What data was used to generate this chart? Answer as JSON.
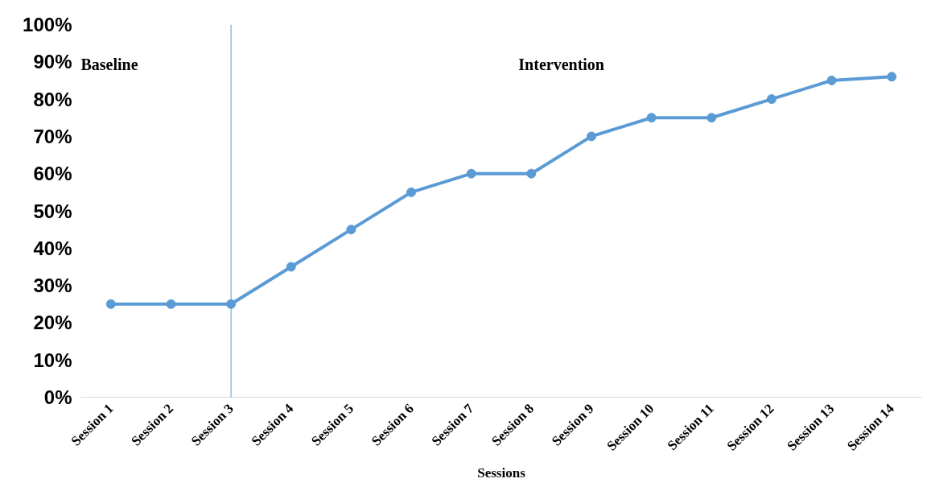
{
  "chart_data": {
    "type": "line",
    "xlabel": "Sessions",
    "categories": [
      "Session 1",
      "Session 2",
      "Session 3",
      "Session 4",
      "Session 5",
      "Session 6",
      "Session 7",
      "Session 8",
      "Session 9",
      "Session 10",
      "Session 11",
      "Session 12",
      "Session 13",
      "Session 14"
    ],
    "series": [
      {
        "color": "#5b9bd5",
        "values": [
          25,
          25,
          25,
          35,
          45,
          55,
          60,
          60,
          70,
          75,
          75,
          80,
          85,
          86
        ]
      }
    ],
    "ylim": [
      0,
      100
    ],
    "yticks": [
      {
        "value": 0,
        "label": "0%"
      },
      {
        "value": 10,
        "label": "10%"
      },
      {
        "value": 20,
        "label": "20%"
      },
      {
        "value": 30,
        "label": "30%"
      },
      {
        "value": 40,
        "label": "40%"
      },
      {
        "value": 50,
        "label": "50%"
      },
      {
        "value": 60,
        "label": "60%"
      },
      {
        "value": 70,
        "label": "70%"
      },
      {
        "value": 80,
        "label": "80%"
      },
      {
        "value": 90,
        "label": "90%"
      },
      {
        "value": 100,
        "label": "100%"
      }
    ],
    "ref_lines": [
      {
        "axis": "x",
        "value": "Session 3",
        "color": "#5b9bd5"
      }
    ],
    "annotations": [
      "Baseline",
      "Intervention"
    ],
    "marker": "circle",
    "line_style": "solid",
    "grid": false
  }
}
